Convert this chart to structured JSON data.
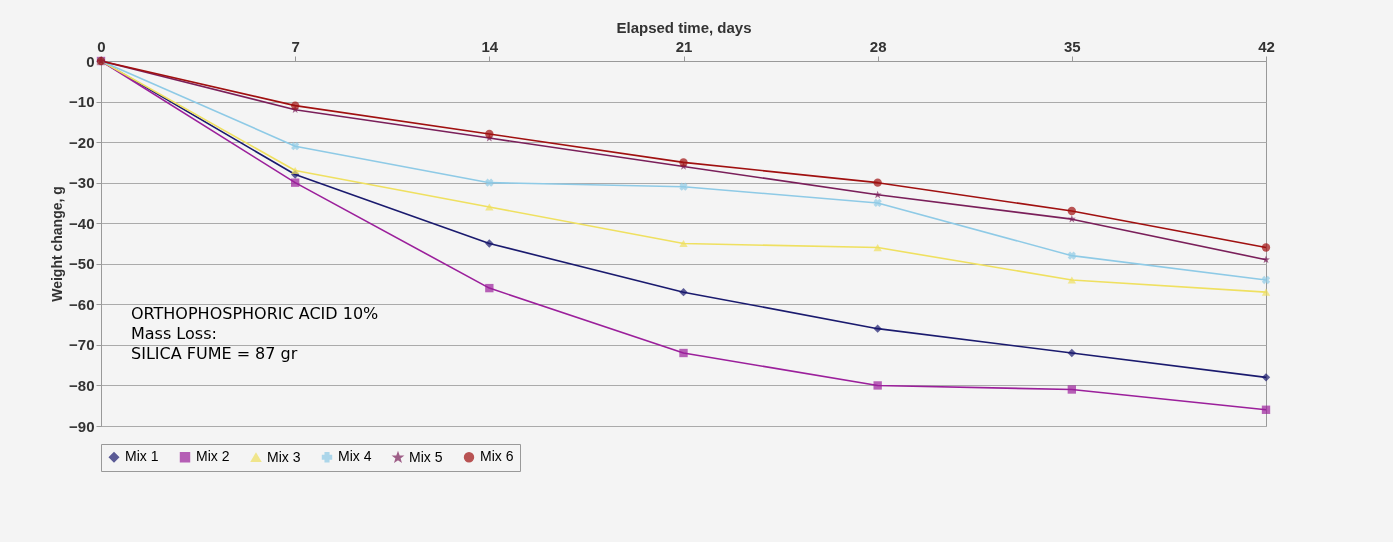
{
  "chart_data": {
    "type": "line",
    "xlabel": "Elapsed time, days",
    "ylabel": "Weight change, g",
    "x": [
      0,
      7,
      14,
      21,
      28,
      35,
      42
    ],
    "xlim": [
      0,
      42
    ],
    "xticks": [
      0,
      7,
      14,
      21,
      28,
      35,
      42
    ],
    "ylim": [
      -90,
      0
    ],
    "yticks": [
      -90,
      -80,
      -70,
      -60,
      -50,
      -40,
      -30,
      -20,
      -10,
      0
    ],
    "grid": "y",
    "legend": "bottom",
    "series": [
      {
        "name": "Mix 1",
        "color": "#1a1a6e",
        "marker": "diamond",
        "values": [
          0,
          -28,
          -45,
          -57,
          -66,
          -72,
          -78
        ]
      },
      {
        "name": "Mix 2",
        "color": "#9b1f9b",
        "marker": "square",
        "values": [
          0,
          -30,
          -56,
          -72,
          -80,
          -81,
          -86
        ]
      },
      {
        "name": "Mix 3",
        "color": "#efe060",
        "marker": "triangle",
        "values": [
          0,
          -27,
          -36,
          -45,
          -46,
          -54,
          -57
        ]
      },
      {
        "name": "Mix 4",
        "color": "#8ecae6",
        "marker": "cross",
        "values": [
          0,
          -21,
          -30,
          -31,
          -35,
          -48,
          -54
        ]
      },
      {
        "name": "Mix 5",
        "color": "#7a1f5a",
        "marker": "star",
        "values": [
          0,
          -12,
          -19,
          -26,
          -33,
          -39,
          -49
        ]
      },
      {
        "name": "Mix 6",
        "color": "#a01010",
        "marker": "circle",
        "values": [
          0,
          -11,
          -18,
          -25,
          -30,
          -37,
          -46
        ]
      }
    ],
    "annotations": [
      "ORTHOPHOSPHORIC ACID 10%",
      "Mass Loss:",
      "SILICA FUME = 87 gr"
    ]
  }
}
